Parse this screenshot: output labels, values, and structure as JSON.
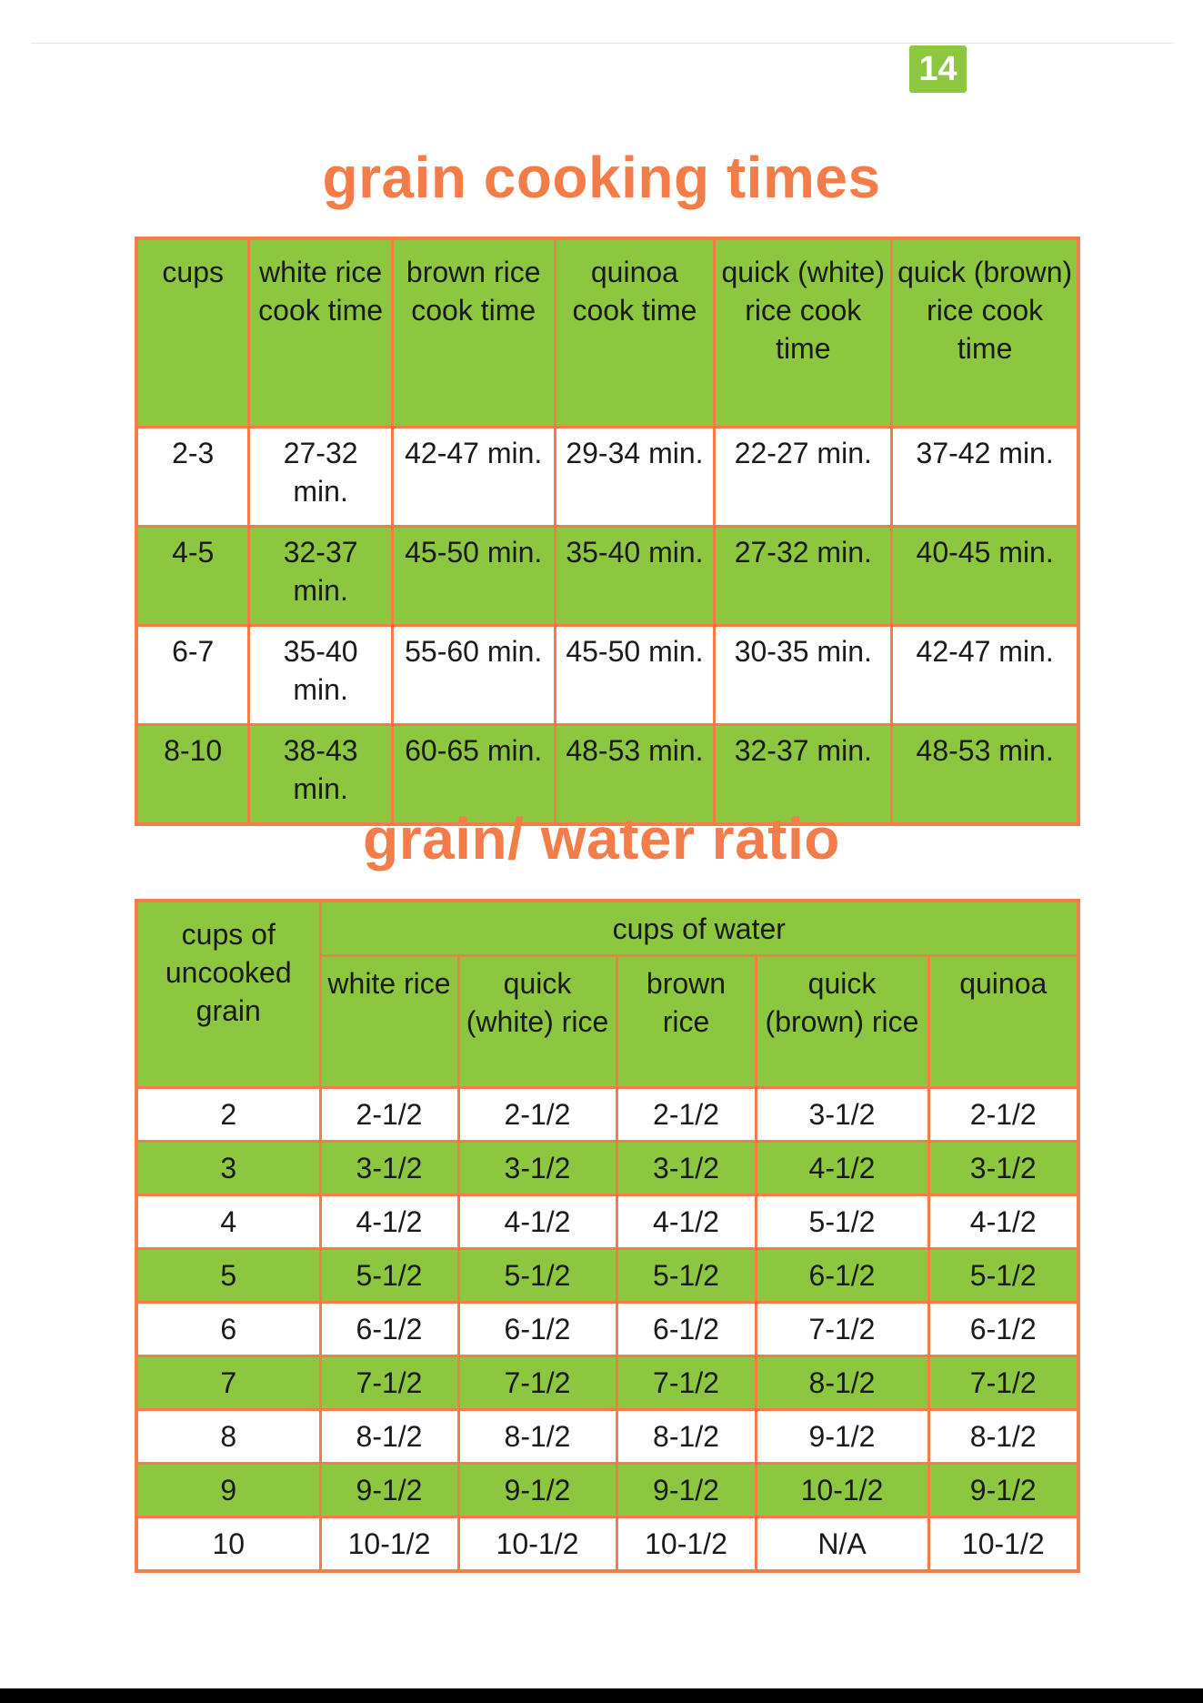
{
  "page_number": "14",
  "cooking_times": {
    "title": "grain cooking times",
    "headers": [
      "cups",
      "white rice cook time",
      "brown rice cook time",
      "quinoa cook time",
      "quick (white) rice cook time",
      "quick (brown) rice cook time"
    ],
    "rows": [
      [
        "2-3",
        "27-32 min.",
        "42-47 min.",
        "29-34 min.",
        "22-27 min.",
        "37-42 min."
      ],
      [
        "4-5",
        "32-37 min.",
        "45-50 min.",
        "35-40 min.",
        "27-32 min.",
        "40-45 min."
      ],
      [
        "6-7",
        "35-40 min.",
        "55-60 min.",
        "45-50 min.",
        "30-35 min.",
        "42-47 min."
      ],
      [
        "8-10",
        "38-43 min.",
        "60-65 min.",
        "48-53 min.",
        "32-37 min.",
        "48-53 min."
      ]
    ]
  },
  "water_ratio": {
    "title": "grain/ water ratio",
    "grain_header": "cups of uncooked grain",
    "water_header": "cups of water",
    "sub_headers": [
      "white rice",
      "quick (white) rice",
      "brown rice",
      "quick (brown) rice",
      "quinoa"
    ],
    "rows": [
      [
        "2",
        "2-1/2",
        "2-1/2",
        "2-1/2",
        "3-1/2",
        "2-1/2"
      ],
      [
        "3",
        "3-1/2",
        "3-1/2",
        "3-1/2",
        "4-1/2",
        "3-1/2"
      ],
      [
        "4",
        "4-1/2",
        "4-1/2",
        "4-1/2",
        "5-1/2",
        "4-1/2"
      ],
      [
        "5",
        "5-1/2",
        "5-1/2",
        "5-1/2",
        "6-1/2",
        "5-1/2"
      ],
      [
        "6",
        "6-1/2",
        "6-1/2",
        "6-1/2",
        "7-1/2",
        "6-1/2"
      ],
      [
        "7",
        "7-1/2",
        "7-1/2",
        "7-1/2",
        "8-1/2",
        "7-1/2"
      ],
      [
        "8",
        "8-1/2",
        "8-1/2",
        "8-1/2",
        "9-1/2",
        "8-1/2"
      ],
      [
        "9",
        "9-1/2",
        "9-1/2",
        "9-1/2",
        "10-1/2",
        "9-1/2"
      ],
      [
        "10",
        "10-1/2",
        "10-1/2",
        "10-1/2",
        "N/A",
        "10-1/2"
      ]
    ]
  },
  "colors": {
    "accent": "#f47c48",
    "green": "#8dc63f",
    "text": "#1a1a1a"
  }
}
